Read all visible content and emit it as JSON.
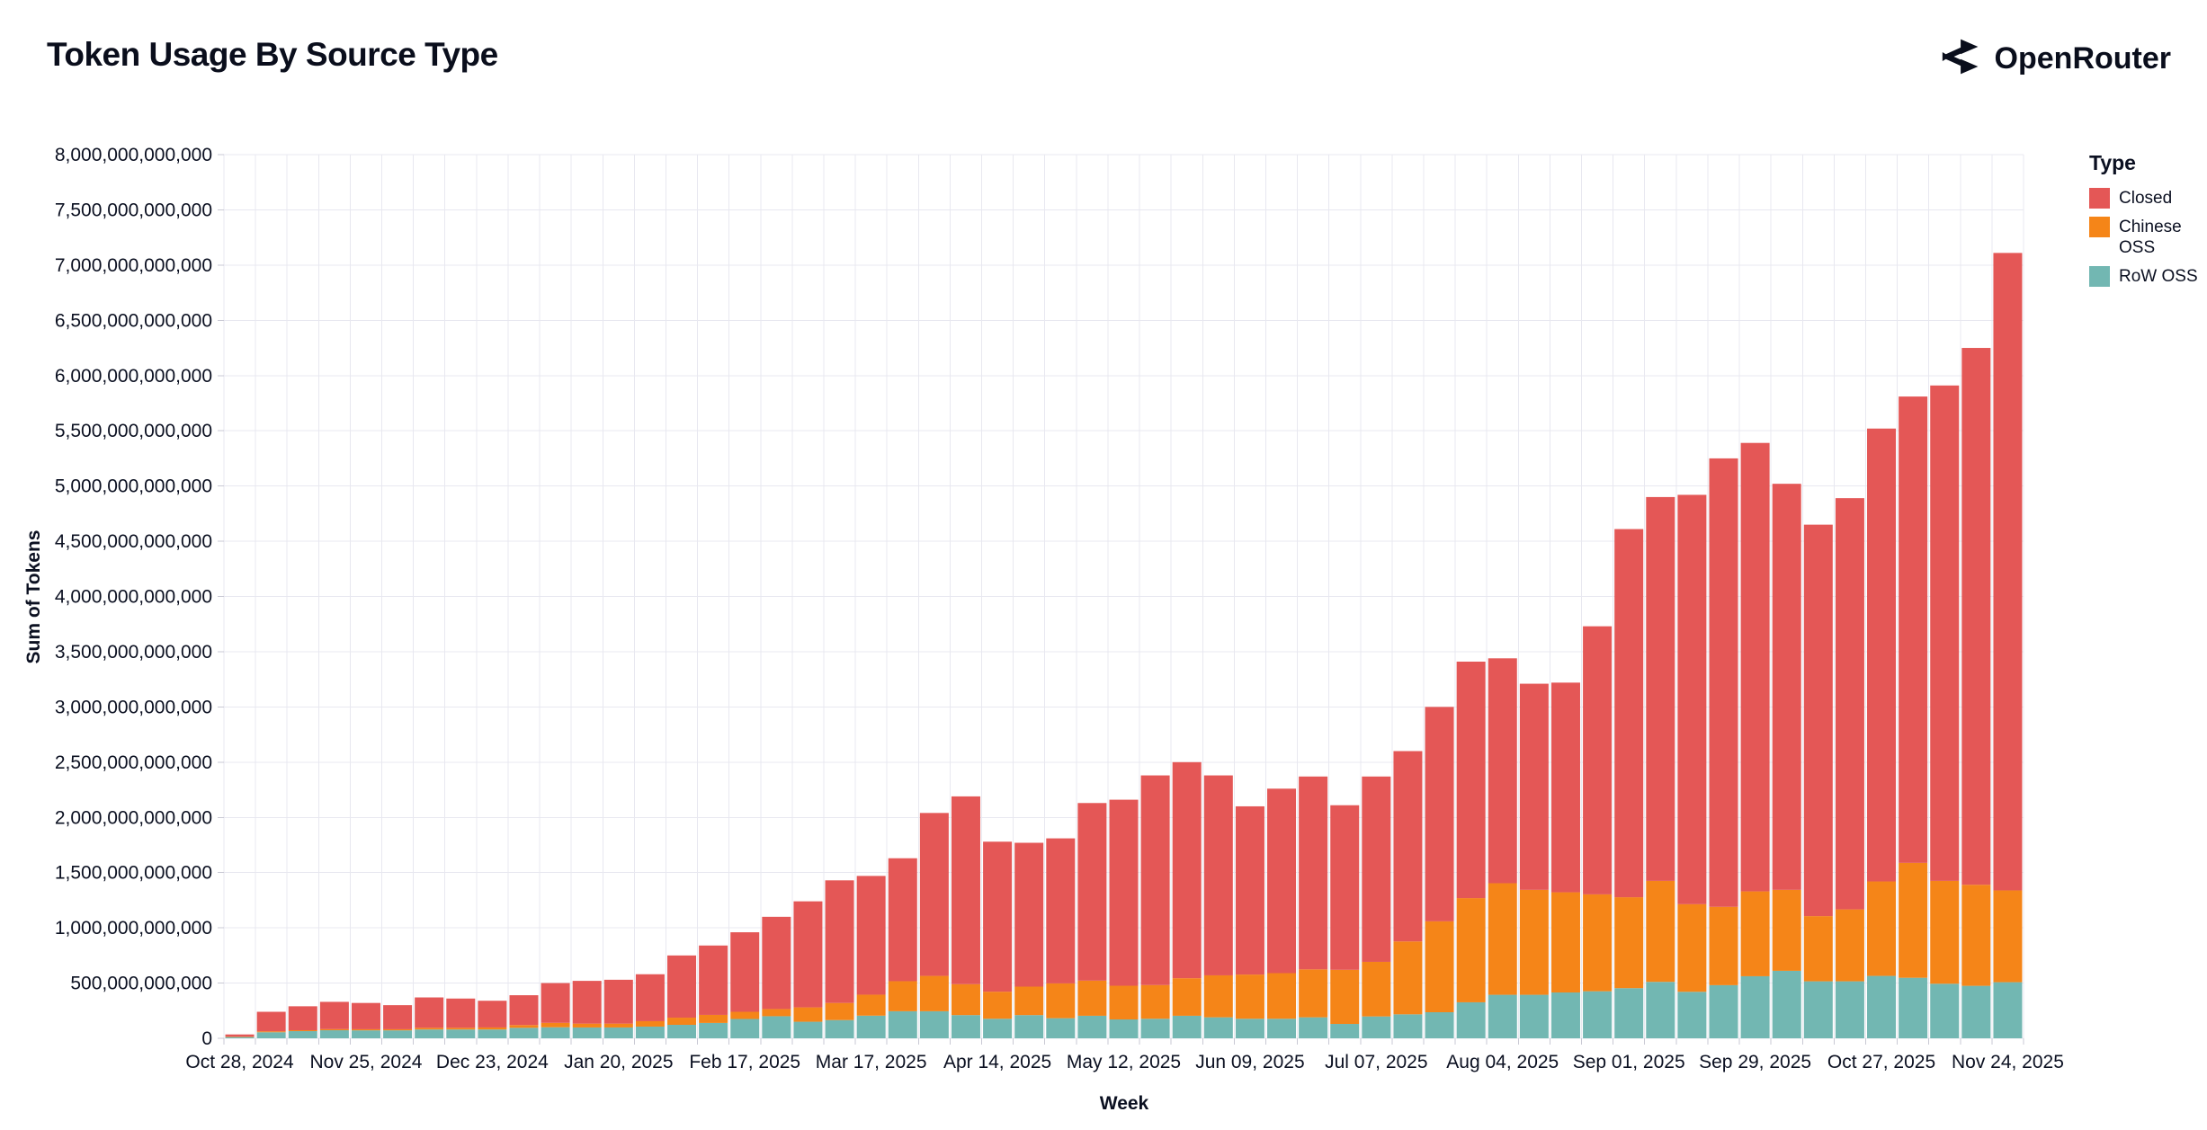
{
  "header": {
    "title": "Token Usage By Source Type",
    "brand": "OpenRouter"
  },
  "chart_data": {
    "type": "bar",
    "stacked": true,
    "title": "Token Usage By Source Type",
    "xlabel": "Week",
    "ylabel": "Sum of Tokens",
    "values_unit": "billions_of_tokens",
    "ylim_billions": [
      0,
      8000
    ],
    "y_tick_step_billions": 500,
    "y_tick_label_example": "8,000,000,000,000",
    "grid": true,
    "legend": {
      "title": "Type",
      "position": "right",
      "entries": [
        "Closed",
        "Chinese OSS",
        "RoW OSS"
      ]
    },
    "x_tick_labels": [
      "Oct 28, 2024",
      "Nov 25, 2024",
      "Dec 23, 2024",
      "Jan 20, 2025",
      "Feb 17, 2025",
      "Mar 17, 2025",
      "Apr 14, 2025",
      "May 12, 2025",
      "Jun 09, 2025",
      "Jul 07, 2025",
      "Aug 04, 2025",
      "Sep 01, 2025",
      "Sep 29, 2025",
      "Oct 27, 2025",
      "Nov 24, 2025"
    ],
    "categories": [
      "Oct 28, 2024",
      "Nov 04, 2024",
      "Nov 11, 2024",
      "Nov 18, 2024",
      "Nov 25, 2024",
      "Dec 02, 2024",
      "Dec 09, 2024",
      "Dec 16, 2024",
      "Dec 23, 2024",
      "Dec 30, 2024",
      "Jan 06, 2025",
      "Jan 13, 2025",
      "Jan 20, 2025",
      "Jan 27, 2025",
      "Feb 03, 2025",
      "Feb 10, 2025",
      "Feb 17, 2025",
      "Feb 24, 2025",
      "Mar 03, 2025",
      "Mar 10, 2025",
      "Mar 17, 2025",
      "Mar 24, 2025",
      "Mar 31, 2025",
      "Apr 07, 2025",
      "Apr 14, 2025",
      "Apr 21, 2025",
      "Apr 28, 2025",
      "May 05, 2025",
      "May 12, 2025",
      "May 19, 2025",
      "May 26, 2025",
      "Jun 02, 2025",
      "Jun 09, 2025",
      "Jun 16, 2025",
      "Jun 23, 2025",
      "Jun 30, 2025",
      "Jul 07, 2025",
      "Jul 14, 2025",
      "Jul 21, 2025",
      "Jul 28, 2025",
      "Aug 04, 2025",
      "Aug 11, 2025",
      "Aug 18, 2025",
      "Aug 25, 2025",
      "Sep 01, 2025",
      "Sep 08, 2025",
      "Sep 15, 2025",
      "Sep 22, 2025",
      "Sep 29, 2025",
      "Oct 06, 2025",
      "Oct 13, 2025",
      "Oct 20, 2025",
      "Oct 27, 2025",
      "Nov 03, 2025",
      "Nov 10, 2025",
      "Nov 17, 2025",
      "Nov 24, 2025"
    ],
    "series": [
      {
        "name": "Closed",
        "color": "#e45756",
        "values": [
          20,
          177,
          217,
          247,
          238,
          218,
          275,
          265,
          242,
          270,
          360,
          387,
          397,
          425,
          563,
          628,
          720,
          835,
          960,
          1110,
          1075,
          1113,
          1475,
          1700,
          1358,
          1302,
          1313,
          1608,
          1684,
          1898,
          1956,
          1810,
          1523,
          1670,
          1746,
          1490,
          1678,
          1723,
          1941,
          2141,
          2036,
          1866,
          1898,
          2427,
          3333,
          3475,
          3706,
          4060,
          4060,
          3676,
          3544,
          3723,
          4100,
          4222,
          4485,
          4860,
          5771
        ]
      },
      {
        "name": "Chinese OSS",
        "color": "#f58518",
        "values": [
          3,
          8,
          8,
          10,
          10,
          10,
          15,
          15,
          18,
          25,
          40,
          35,
          35,
          49,
          65,
          73,
          65,
          65,
          130,
          155,
          190,
          272,
          320,
          280,
          245,
          258,
          315,
          318,
          305,
          305,
          340,
          380,
          400,
          413,
          434,
          490,
          494,
          660,
          823,
          943,
          1010,
          950,
          907,
          877,
          823,
          914,
          793,
          709,
          768,
          733,
          590,
          651,
          855,
          1040,
          931,
          915,
          831
        ]
      },
      {
        "name": "RoW OSS",
        "color": "#72b7b2",
        "values": [
          12,
          55,
          65,
          73,
          72,
          72,
          80,
          80,
          80,
          95,
          100,
          98,
          98,
          106,
          122,
          139,
          175,
          200,
          150,
          165,
          205,
          245,
          245,
          210,
          177,
          210,
          182,
          204,
          171,
          177,
          204,
          190,
          177,
          177,
          190,
          130,
          198,
          217,
          236,
          326,
          394,
          394,
          415,
          426,
          454,
          511,
          421,
          481,
          562,
          611,
          516,
          516,
          565,
          548,
          494,
          475,
          508
        ]
      }
    ],
    "totals_billions": [
      35,
      240,
      290,
      330,
      320,
      300,
      370,
      360,
      340,
      390,
      500,
      520,
      530,
      580,
      750,
      840,
      960,
      1100,
      1240,
      1430,
      1470,
      1630,
      2040,
      2190,
      1780,
      1770,
      1810,
      2130,
      2160,
      2380,
      2500,
      2380,
      2100,
      2260,
      2370,
      2110,
      2370,
      2600,
      3000,
      3410,
      3440,
      3210,
      3220,
      3730,
      4610,
      4900,
      4920,
      5250,
      5390,
      5020,
      4650,
      4890,
      5520,
      5810,
      5910,
      6250,
      7110
    ]
  },
  "style": {
    "grid_color": "#e8e8f0",
    "tick_color": "#c9c9d4",
    "text_color": "#0b1021",
    "background": "#ffffff"
  },
  "icons": {
    "openrouter_logo": "openrouter-merge-arrows"
  }
}
